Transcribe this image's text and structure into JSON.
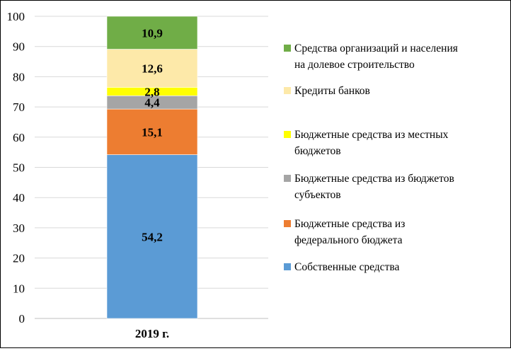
{
  "chart_data": {
    "type": "bar",
    "stacked": true,
    "categories": [
      "2019 г."
    ],
    "ylim": [
      0,
      100
    ],
    "yticks": [
      0,
      10,
      20,
      30,
      40,
      50,
      60,
      70,
      80,
      90,
      100
    ],
    "grid": true,
    "legend_position": "right",
    "series": [
      {
        "name": "Собственные средства",
        "values": [
          54.2
        ],
        "label": "54,2",
        "color": "#5b9bd5"
      },
      {
        "name": "Бюджетные средства из федерального бюджета",
        "values": [
          15.1
        ],
        "label": "15,1",
        "color": "#ed7d31"
      },
      {
        "name": "Бюджетные средства из бюджетов субъектов",
        "values": [
          4.4
        ],
        "label": "4,4",
        "color": "#a5a5a5"
      },
      {
        "name": "Бюджетные средства из местных бюджетов",
        "values": [
          2.8
        ],
        "label": "2,8",
        "color": "#ffff00"
      },
      {
        "name": "Кредиты банков",
        "values": [
          12.6
        ],
        "label": "12,6",
        "color": "#fde9a9"
      },
      {
        "name": "Средства организаций и населения на долевое строительство",
        "values": [
          10.9
        ],
        "label": "10,9",
        "color": "#70ad47"
      }
    ],
    "legend": [
      {
        "lines": [
          "Средства организаций и населения",
          "на долевое строительство"
        ],
        "color": "#70ad47"
      },
      {
        "lines": [
          "Кредиты банков"
        ],
        "color": "#fde9a9"
      },
      {
        "lines": [
          "Бюджетные средства из местных",
          "бюджетов"
        ],
        "color": "#ffff00"
      },
      {
        "lines": [
          "Бюджетные средства из бюджетов",
          "субъектов"
        ],
        "color": "#a5a5a5"
      },
      {
        "lines": [
          "Бюджетные средства из",
          "федерального бюджета"
        ],
        "color": "#ed7d31"
      },
      {
        "lines": [
          "Собственные средства"
        ],
        "color": "#5b9bd5"
      }
    ]
  }
}
